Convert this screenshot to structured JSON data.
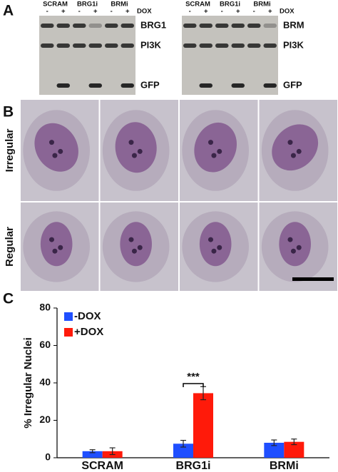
{
  "panel_a": {
    "label": "A",
    "treatment": "DOX",
    "signs": [
      "-",
      "+"
    ],
    "blots": [
      {
        "groups": [
          "SCRAM",
          "BRG1i",
          "BRMi"
        ],
        "proteins": [
          "BRG1",
          "PI3K",
          "GFP"
        ]
      },
      {
        "groups": [
          "SCRAM",
          "BRG1i",
          "BRMi"
        ],
        "proteins": [
          "BRM",
          "PI3K",
          "GFP"
        ]
      }
    ]
  },
  "panel_b": {
    "label": "B",
    "rows": [
      "Irregular",
      "Regular"
    ]
  },
  "chart_data": {
    "type": "bar",
    "panel_label": "C",
    "y_label": "% Irregular Nuclei",
    "categories": [
      "SCRAM",
      "BRG1i",
      "BRMi"
    ],
    "series": [
      {
        "name": "-DOX",
        "color": "#1f4fff",
        "values": [
          3.5,
          7.5,
          8
        ],
        "errors": [
          0.8,
          1.8,
          1.5
        ]
      },
      {
        "name": "+DOX",
        "color": "#ff1a0a",
        "values": [
          3.5,
          34.5,
          8.5
        ],
        "errors": [
          1.8,
          3.5,
          1.5
        ]
      }
    ],
    "ylim": [
      0,
      80
    ],
    "yticks": [
      0,
      20,
      40,
      60,
      80
    ],
    "annotation": "***",
    "legend": "upper left"
  }
}
